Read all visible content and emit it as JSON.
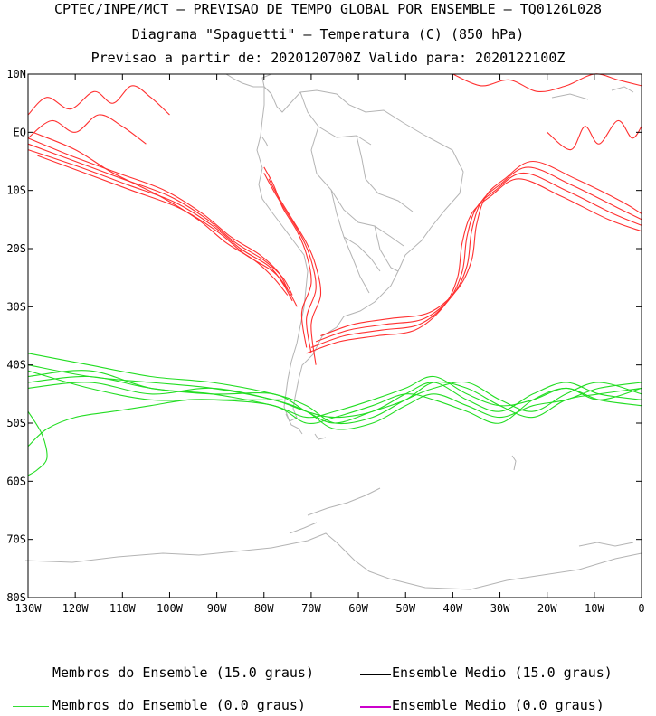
{
  "header": {
    "line1": "CPTEC/INPE/MCT – PREVISAO DE TEMPO GLOBAL POR ENSEMBLE – TQ0126L028",
    "line2": "Diagrama \"Spaguetti\" – Temperatura (C) (850 hPa)",
    "line3": "Previsao a partir de: 2020120700Z  Valido para: 2020122100Z"
  },
  "chart_data": {
    "type": "line",
    "title": "Diagrama \"Spaguetti\" – Temperatura (C) (850 hPa)",
    "xlabel": "",
    "ylabel": "",
    "xlim": [
      -130,
      0
    ],
    "ylim": [
      -80,
      10
    ],
    "x_ticks": [
      {
        "value": -130,
        "label": "130W"
      },
      {
        "value": -120,
        "label": "120W"
      },
      {
        "value": -110,
        "label": "110W"
      },
      {
        "value": -100,
        "label": "100W"
      },
      {
        "value": -90,
        "label": "90W"
      },
      {
        "value": -80,
        "label": "80W"
      },
      {
        "value": -70,
        "label": "70W"
      },
      {
        "value": -60,
        "label": "60W"
      },
      {
        "value": -50,
        "label": "50W"
      },
      {
        "value": -40,
        "label": "40W"
      },
      {
        "value": -30,
        "label": "30W"
      },
      {
        "value": -20,
        "label": "20W"
      },
      {
        "value": -10,
        "label": "10W"
      },
      {
        "value": 0,
        "label": "0"
      }
    ],
    "y_ticks": [
      {
        "value": 10,
        "label": "10N"
      },
      {
        "value": 0,
        "label": "EQ"
      },
      {
        "value": -10,
        "label": "10S"
      },
      {
        "value": -20,
        "label": "20S"
      },
      {
        "value": -30,
        "label": "30S"
      },
      {
        "value": -40,
        "label": "40S"
      },
      {
        "value": -50,
        "label": "50S"
      },
      {
        "value": -60,
        "label": "60S"
      },
      {
        "value": -70,
        "label": "70S"
      },
      {
        "value": -80,
        "label": "80S"
      }
    ],
    "series": [
      {
        "name": "red-member-1",
        "legend": "members_15",
        "color": "#ff3030",
        "x": [
          -130,
          -120,
          -110,
          -100,
          -92,
          -86,
          -80,
          -76,
          -74
        ],
        "y": [
          -2,
          -5,
          -8,
          -11,
          -15,
          -19,
          -22,
          -25,
          -28
        ]
      },
      {
        "name": "red-member-2",
        "legend": "members_15",
        "color": "#ff3030",
        "x": [
          -130,
          -121,
          -111,
          -101,
          -93,
          -87,
          -81,
          -77,
          -75
        ],
        "y": [
          -1,
          -4,
          -7,
          -10,
          -14,
          -18,
          -21,
          -24,
          -27
        ]
      },
      {
        "name": "red-member-3",
        "legend": "members_15",
        "color": "#ff3030",
        "x": [
          -130,
          -119,
          -109,
          -99,
          -91,
          -85,
          -79,
          -76,
          -74
        ],
        "y": [
          -3,
          -6,
          -9,
          -12,
          -16,
          -20,
          -23,
          -26,
          -29
        ]
      },
      {
        "name": "red-member-4",
        "legend": "members_15",
        "color": "#ff3030",
        "x": [
          -129,
          -120,
          -112,
          -102,
          -94,
          -88,
          -82,
          -78,
          -75
        ],
        "y": [
          0,
          -3,
          -7,
          -11,
          -15,
          -19,
          -22,
          -25,
          -28
        ]
      },
      {
        "name": "red-member-5",
        "legend": "members_15",
        "color": "#ff3030",
        "x": [
          -128,
          -118,
          -108,
          -98,
          -90,
          -84,
          -78,
          -75,
          -73
        ],
        "y": [
          -4,
          -7,
          -10,
          -13,
          -17,
          -21,
          -24,
          -27,
          -30
        ]
      },
      {
        "name": "red-andes-1",
        "legend": "members_15",
        "color": "#ff3030",
        "x": [
          -80,
          -78,
          -75,
          -72,
          -70,
          -69,
          -71,
          -70
        ],
        "y": [
          -7,
          -10,
          -14,
          -18,
          -22,
          -27,
          -32,
          -38
        ]
      },
      {
        "name": "red-andes-2",
        "legend": "members_15",
        "color": "#ff3030",
        "x": [
          -79,
          -77,
          -74,
          -71,
          -69,
          -68,
          -70,
          -69
        ],
        "y": [
          -8,
          -11,
          -15,
          -19,
          -23,
          -28,
          -33,
          -40
        ]
      },
      {
        "name": "red-andes-3",
        "legend": "members_15",
        "color": "#ff3030",
        "x": [
          -80,
          -78,
          -76,
          -73,
          -71,
          -70,
          -72,
          -71
        ],
        "y": [
          -6,
          -9,
          -13,
          -17,
          -21,
          -26,
          -31,
          -37
        ]
      },
      {
        "name": "red-atlantic-1",
        "legend": "members_15",
        "color": "#ff3030",
        "x": [
          -69,
          -62,
          -54,
          -46,
          -40,
          -37,
          -36,
          -34,
          -30,
          -24,
          -15,
          -5,
          0
        ],
        "y": [
          -36,
          -34,
          -33,
          -32,
          -28,
          -23,
          -17,
          -12,
          -9,
          -6,
          -9,
          -13,
          -15
        ]
      },
      {
        "name": "red-atlantic-2",
        "legend": "members_15",
        "color": "#ff3030",
        "x": [
          -70,
          -63,
          -55,
          -47,
          -41,
          -38,
          -37,
          -35,
          -31,
          -25,
          -16,
          -6,
          0
        ],
        "y": [
          -37,
          -35,
          -34,
          -33,
          -29,
          -24,
          -18,
          -13,
          -10,
          -7,
          -10,
          -14,
          -16
        ]
      },
      {
        "name": "red-atlantic-3",
        "legend": "members_15",
        "color": "#ff3030",
        "x": [
          -71,
          -64,
          -56,
          -48,
          -42,
          -39,
          -38,
          -36,
          -32,
          -26,
          -17,
          -7,
          0
        ],
        "y": [
          -38,
          -36,
          -35,
          -34,
          -30,
          -25,
          -19,
          -14,
          -11,
          -8,
          -11,
          -15,
          -17
        ]
      },
      {
        "name": "red-atlantic-4",
        "legend": "members_15",
        "color": "#ff3030",
        "x": [
          -68,
          -61,
          -53,
          -45,
          -39,
          -36,
          -35,
          -33,
          -29,
          -23,
          -14,
          -4,
          0
        ],
        "y": [
          -35,
          -33,
          -32,
          -31,
          -27,
          -22,
          -16,
          -11,
          -8,
          -5,
          -8,
          -12,
          -14
        ]
      },
      {
        "name": "red-north-pacific-1",
        "legend": "members_15",
        "color": "#ff3030",
        "x": [
          -130,
          -126,
          -121,
          -116,
          -112,
          -108,
          -104,
          -100
        ],
        "y": [
          3,
          6,
          4,
          7,
          5,
          8,
          6,
          3
        ]
      },
      {
        "name": "red-north-pacific-2",
        "legend": "members_15",
        "color": "#ff3030",
        "x": [
          -130,
          -125,
          -120,
          -115,
          -110,
          -105
        ],
        "y": [
          -1,
          2,
          0,
          3,
          1,
          -2
        ]
      },
      {
        "name": "red-north-atlantic-1",
        "legend": "members_15",
        "color": "#ff3030",
        "x": [
          -40,
          -34,
          -28,
          -22,
          -16,
          -10,
          -5,
          0
        ],
        "y": [
          10,
          8,
          9,
          7,
          8,
          10,
          9,
          8
        ]
      },
      {
        "name": "red-north-atlantic-2",
        "legend": "members_15",
        "color": "#ff3030",
        "x": [
          -20,
          -15,
          -12,
          -9,
          -5,
          -2,
          0
        ],
        "y": [
          0,
          -3,
          1,
          -2,
          2,
          -1,
          1
        ]
      },
      {
        "name": "green-member-1",
        "legend": "members_0",
        "color": "#22dd22",
        "x": [
          -130,
          -117,
          -104,
          -91,
          -78,
          -71,
          -65,
          -57,
          -50,
          -44,
          -37,
          -30,
          -23,
          -16,
          -9,
          0
        ],
        "y": [
          -40,
          -42,
          -43,
          -44,
          -46,
          -48,
          -49,
          -48,
          -45,
          -43,
          -46,
          -48,
          -45,
          -43,
          -45,
          -46
        ]
      },
      {
        "name": "green-member-2",
        "legend": "members_0",
        "color": "#22dd22",
        "x": [
          -130,
          -117,
          -104,
          -91,
          -78,
          -71,
          -65,
          -57,
          -50,
          -44,
          -37,
          -30,
          -23,
          -16,
          -9,
          0
        ],
        "y": [
          -42,
          -41,
          -44,
          -45,
          -47,
          -49,
          -48,
          -46,
          -44,
          -42,
          -45,
          -47,
          -46,
          -44,
          -46,
          -44
        ]
      },
      {
        "name": "green-member-3",
        "legend": "members_0",
        "color": "#22dd22",
        "x": [
          -130,
          -117,
          -104,
          -91,
          -78,
          -71,
          -65,
          -57,
          -50,
          -44,
          -37,
          -30,
          -23,
          -16,
          -9,
          0
        ],
        "y": [
          -38,
          -40,
          -42,
          -43,
          -45,
          -47,
          -50,
          -49,
          -46,
          -44,
          -43,
          -46,
          -48,
          -45,
          -43,
          -45
        ]
      },
      {
        "name": "green-member-4",
        "legend": "members_0",
        "color": "#22dd22",
        "x": [
          -130,
          -117,
          -104,
          -91,
          -78,
          -71,
          -65,
          -57,
          -50,
          -44,
          -37,
          -30,
          -23,
          -16,
          -9,
          0
        ],
        "y": [
          -44,
          -43,
          -45,
          -44,
          -46,
          -48,
          -51,
          -50,
          -47,
          -45,
          -47,
          -49,
          -47,
          -46,
          -44,
          -43
        ]
      },
      {
        "name": "green-member-5",
        "legend": "members_0",
        "color": "#22dd22",
        "x": [
          -130,
          -117,
          -104,
          -91,
          -78,
          -71,
          -65,
          -57,
          -50,
          -44,
          -37,
          -30,
          -23,
          -16,
          -9,
          0
        ],
        "y": [
          -41,
          -44,
          -46,
          -46,
          -47,
          -50,
          -49,
          -47,
          -45,
          -46,
          -48,
          -50,
          -46,
          -44,
          -46,
          -47
        ]
      },
      {
        "name": "green-member-6",
        "legend": "members_0",
        "color": "#22dd22",
        "x": [
          -130,
          -117,
          -104,
          -91,
          -78,
          -71,
          -65,
          -57,
          -50,
          -44,
          -37,
          -30,
          -23,
          -16,
          -9,
          0
        ],
        "y": [
          -43,
          -42,
          -44,
          -45,
          -45,
          -48,
          -50,
          -48,
          -46,
          -43,
          -44,
          -47,
          -49,
          -46,
          -45,
          -44
        ]
      },
      {
        "name": "green-southwest-1",
        "legend": "members_0",
        "color": "#22dd22",
        "x": [
          -130,
          -127,
          -126,
          -128,
          -130
        ],
        "y": [
          -48,
          -52,
          -56,
          -58,
          -59
        ]
      },
      {
        "name": "green-southwest-2",
        "legend": "members_0",
        "color": "#22dd22",
        "x": [
          -130,
          -126,
          -120,
          -112,
          -104,
          -96,
          -88,
          -80,
          -76
        ],
        "y": [
          -54,
          -51,
          -49,
          -48,
          -47,
          -46,
          -46,
          -46,
          -46
        ]
      }
    ],
    "legend": [
      {
        "key": "members_15",
        "label": "Membros do Ensemble (15.0 graus)",
        "color": "#ff6060"
      },
      {
        "key": "mean_15",
        "label": "Ensemble Medio (15.0 graus)",
        "color": "#000000"
      },
      {
        "key": "members_0",
        "label": "Membros do Ensemble (0.0 graus)",
        "color": "#33dd33"
      },
      {
        "key": "mean_0",
        "label": "Ensemble Medio (0.0 graus)",
        "color": "#cc00cc"
      }
    ],
    "legend_position": "bottom",
    "grid": false
  },
  "map": {
    "land_color": "#b4b4b4",
    "name": "South America coastline"
  }
}
